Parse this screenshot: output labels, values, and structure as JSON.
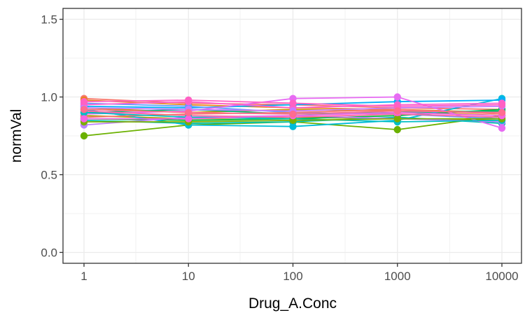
{
  "chart_data": {
    "type": "line",
    "xlabel": "Drug_A.Conc",
    "ylabel": "normVal",
    "x_scale": "log10",
    "x": [
      1,
      10,
      100,
      1000,
      10000
    ],
    "x_tick_labels": [
      "1",
      "10",
      "100",
      "1000",
      "10000"
    ],
    "y_ticks": [
      0.0,
      0.5,
      1.0,
      1.5
    ],
    "y_tick_labels": [
      "0.0",
      "0.5",
      "1.0",
      "1.5"
    ],
    "ylim": [
      -0.07,
      1.57
    ],
    "grid": true,
    "legend": "none",
    "series": [
      {
        "color": "#F8766D",
        "values": [
          0.99,
          0.96,
          0.95,
          0.93,
          0.92
        ]
      },
      {
        "color": "#E7861B",
        "values": [
          0.98,
          0.95,
          0.93,
          0.92,
          0.9
        ]
      },
      {
        "color": "#C99800",
        "values": [
          0.93,
          0.9,
          0.92,
          0.91,
          0.88
        ]
      },
      {
        "color": "#A3A500",
        "values": [
          0.88,
          0.86,
          0.87,
          0.86,
          0.85
        ]
      },
      {
        "color": "#6BB100",
        "values": [
          0.75,
          0.82,
          0.84,
          0.79,
          0.88
        ]
      },
      {
        "color": "#00BA38",
        "values": [
          0.86,
          0.85,
          0.86,
          0.88,
          0.92
        ]
      },
      {
        "color": "#00BF7D",
        "values": [
          0.9,
          0.92,
          0.89,
          0.9,
          0.91
        ]
      },
      {
        "color": "#00C0AF",
        "values": [
          0.85,
          0.83,
          0.84,
          0.87,
          0.83
        ]
      },
      {
        "color": "#00BCD8",
        "values": [
          0.92,
          0.82,
          0.81,
          0.85,
          0.99
        ]
      },
      {
        "color": "#00B0F6",
        "values": [
          0.94,
          0.93,
          0.95,
          0.97,
          0.98
        ]
      },
      {
        "color": "#619CFF",
        "values": [
          0.96,
          0.94,
          0.9,
          0.89,
          0.86
        ]
      },
      {
        "color": "#B983FF",
        "values": [
          0.82,
          0.87,
          0.88,
          0.86,
          0.84
        ]
      },
      {
        "color": "#E76BF3",
        "values": [
          0.89,
          0.91,
          0.99,
          1.0,
          0.8
        ]
      },
      {
        "color": "#FD61D1",
        "values": [
          0.95,
          0.97,
          0.93,
          0.95,
          0.96
        ]
      },
      {
        "color": "#FF67A4",
        "values": [
          0.91,
          0.88,
          0.87,
          0.89,
          0.87
        ]
      },
      {
        "color": "#F8766D",
        "values": [
          0.87,
          0.89,
          0.9,
          0.92,
          0.89
        ]
      },
      {
        "color": "#00BFC4",
        "values": [
          0.9,
          0.87,
          0.86,
          0.84,
          0.85
        ]
      },
      {
        "color": "#7CAE00",
        "values": [
          0.84,
          0.84,
          0.85,
          0.86,
          0.86
        ]
      },
      {
        "color": "#C77CFF",
        "values": [
          0.93,
          0.92,
          0.91,
          0.93,
          0.94
        ]
      },
      {
        "color": "#FF61C3",
        "values": [
          0.97,
          0.98,
          0.96,
          0.94,
          0.95
        ]
      },
      {
        "color": "#F564E3",
        "values": [
          0.86,
          0.86,
          0.88,
          0.9,
          0.88
        ]
      },
      {
        "color": "#FF6C90",
        "values": [
          0.92,
          0.9,
          0.89,
          0.91,
          0.9
        ]
      }
    ]
  }
}
